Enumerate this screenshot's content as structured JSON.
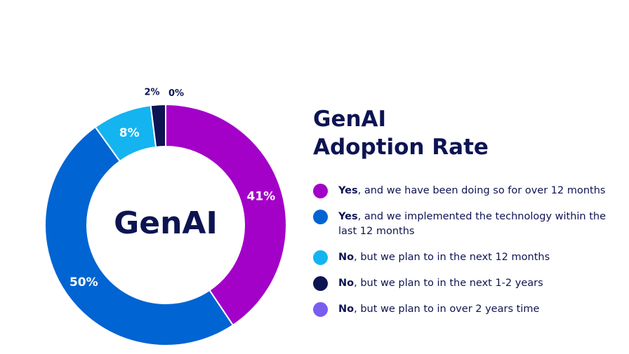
{
  "chart_data": {
    "type": "pie",
    "title_line1": "GenAI",
    "title_line2": "Adoption Rate",
    "center_label": "GenAI",
    "slices": [
      {
        "bold": "Yes",
        "rest": ", and we have been doing so for over 12 months",
        "value": 41,
        "label": "41%",
        "color": "#a300c8"
      },
      {
        "bold": "Yes",
        "rest": ", and we implemented the technology within the last 12 months",
        "value": 50,
        "label": "50%",
        "color": "#0064d2"
      },
      {
        "bold": "No",
        "rest": ", but we plan to in the next 12 months",
        "value": 8,
        "label": "8%",
        "color": "#14b4f0"
      },
      {
        "bold": "No",
        "rest": ", but we plan to in the next 1-2 years",
        "value": 2,
        "label": "2%",
        "color": "#0d1452"
      },
      {
        "bold": "No",
        "rest": ", but we plan to in over 2 years time",
        "value": 0,
        "label": "0%",
        "color": "#7b5cf0"
      }
    ],
    "legend_position": "right"
  }
}
